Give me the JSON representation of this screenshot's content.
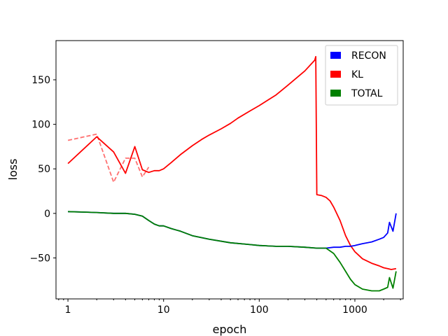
{
  "chart_data": {
    "type": "line",
    "title": "",
    "xlabel": "epoch",
    "ylabel": "loss",
    "xscale": "log",
    "xlim": [
      0.75,
      3200
    ],
    "ylim": [
      -96,
      194
    ],
    "xticks": [
      {
        "value": 1,
        "label": "1"
      },
      {
        "value": 10,
        "label": "10"
      },
      {
        "value": 100,
        "label": "100"
      },
      {
        "value": 1000,
        "label": "1000"
      }
    ],
    "yticks": [
      {
        "value": -50,
        "label": "−50"
      },
      {
        "value": 0,
        "label": "0"
      },
      {
        "value": 50,
        "label": "50"
      },
      {
        "value": 100,
        "label": "100"
      },
      {
        "value": 150,
        "label": "150"
      }
    ],
    "grid": false,
    "legend": {
      "position": "top-right",
      "entries": [
        {
          "label": "RECON",
          "color": "#0000ff"
        },
        {
          "label": "KL",
          "color": "#ff0000"
        },
        {
          "label": "TOTAL",
          "color": "#008000"
        }
      ]
    },
    "series": [
      {
        "name": "KL",
        "color": "#ff0000",
        "style": "solid",
        "x": [
          1,
          2,
          3,
          4,
          5,
          6,
          7,
          8,
          9,
          10,
          12,
          15,
          20,
          25,
          30,
          40,
          50,
          60,
          80,
          100,
          150,
          200,
          300,
          380,
          390,
          400,
          450,
          500,
          550,
          600,
          700,
          800,
          900,
          1000,
          1200,
          1500,
          1800,
          2000,
          2200,
          2400,
          2700
        ],
        "y": [
          56,
          86,
          69,
          45,
          75,
          49,
          46,
          48,
          48,
          50,
          57,
          66,
          76,
          83,
          88,
          95,
          101,
          107,
          115,
          121,
          133,
          144,
          160,
          172,
          176,
          21,
          20,
          18,
          14,
          7,
          -8,
          -25,
          -36,
          -43,
          -51,
          -56,
          -59,
          -61,
          -62,
          -63,
          -62
        ]
      },
      {
        "name": "KL (dashed)",
        "color": "#ff7070",
        "style": "dashed",
        "x": [
          1,
          2,
          3,
          4,
          5,
          6,
          7
        ],
        "y": [
          82,
          89,
          35,
          62,
          62,
          41,
          52
        ]
      },
      {
        "name": "RECON",
        "color": "#0000ff",
        "style": "solid",
        "x": [
          1,
          2,
          3,
          4,
          5,
          6,
          7,
          8,
          9,
          10,
          12,
          15,
          20,
          30,
          50,
          80,
          100,
          150,
          200,
          300,
          400,
          500,
          600,
          700,
          800,
          900,
          1000,
          1200,
          1500,
          1800,
          2000,
          2200,
          2300,
          2500,
          2700
        ],
        "y": [
          2,
          1,
          0,
          0,
          -1,
          -3,
          -8,
          -12,
          -14,
          -14,
          -17,
          -20,
          -25,
          -29,
          -33,
          -35,
          -36,
          -37,
          -37,
          -38,
          -39,
          -39,
          -38,
          -38,
          -37,
          -37,
          -36,
          -34,
          -32,
          -29,
          -27,
          -22,
          -10,
          -20,
          0
        ]
      },
      {
        "name": "TOTAL",
        "color": "#008000",
        "style": "solid",
        "x": [
          1,
          2,
          3,
          4,
          5,
          6,
          7,
          8,
          9,
          10,
          12,
          15,
          20,
          30,
          50,
          80,
          100,
          150,
          200,
          300,
          400,
          500,
          600,
          700,
          800,
          900,
          1000,
          1200,
          1500,
          1800,
          2000,
          2200,
          2300,
          2500,
          2700
        ],
        "y": [
          2,
          1,
          0,
          0,
          -1,
          -3,
          -8,
          -12,
          -14,
          -14,
          -17,
          -20,
          -25,
          -29,
          -33,
          -35,
          -36,
          -37,
          -37,
          -38,
          -39,
          -39,
          -45,
          -55,
          -65,
          -74,
          -80,
          -85,
          -87,
          -87,
          -85,
          -83,
          -72,
          -84,
          -65
        ]
      }
    ]
  }
}
